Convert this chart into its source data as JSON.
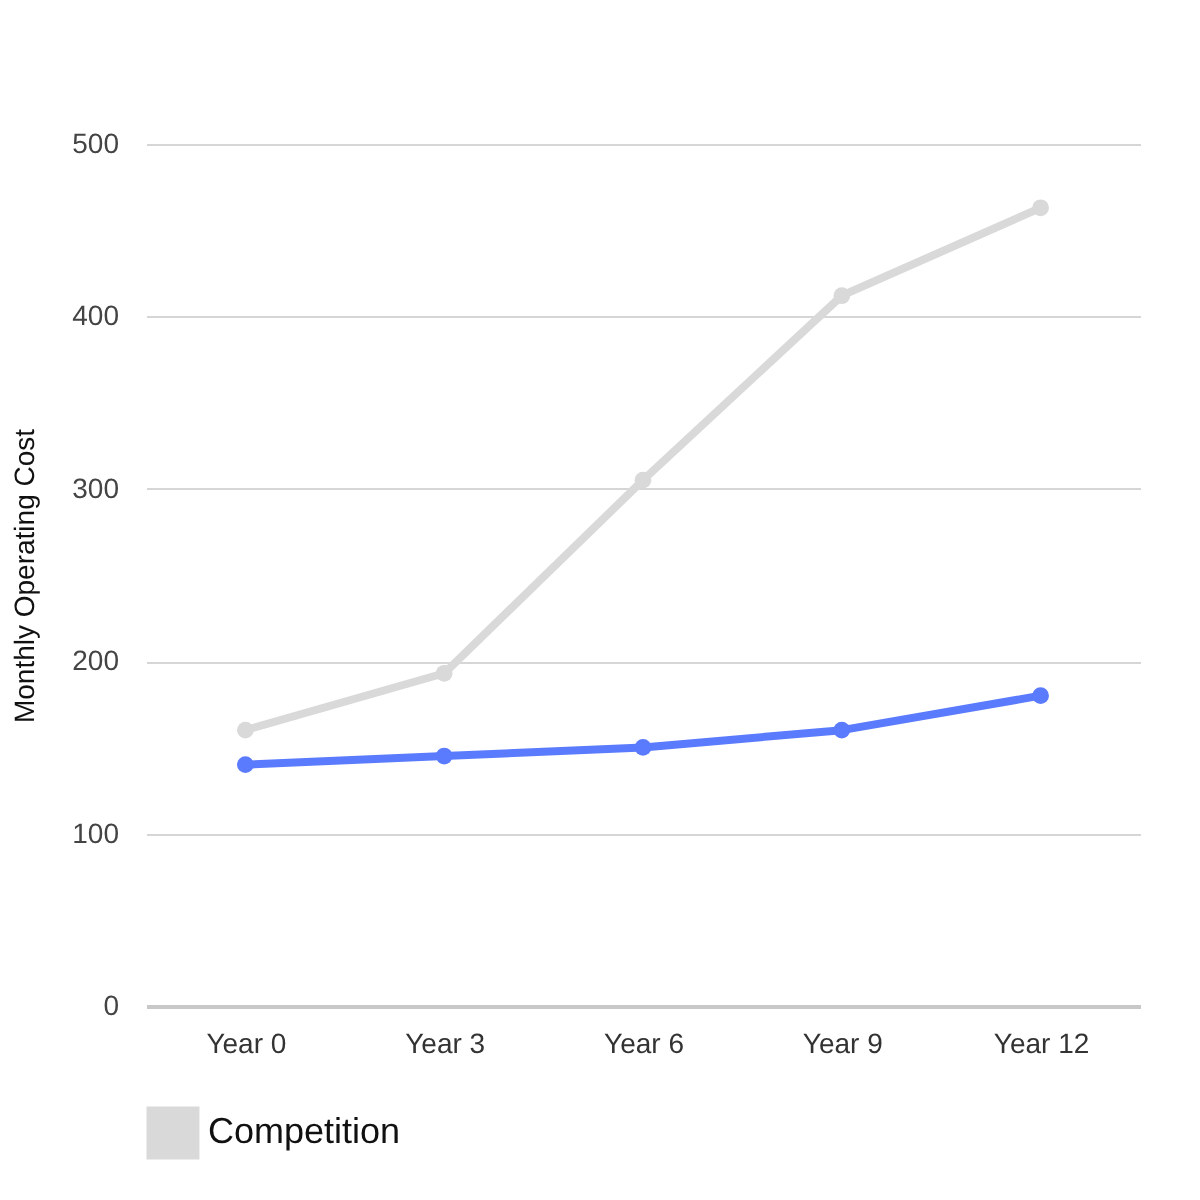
{
  "chart_data": {
    "type": "line",
    "ylabel": "Monthly Operating Cost",
    "categories": [
      "Year 0",
      "Year 3",
      "Year 6",
      "Year 9",
      "Year 12"
    ],
    "series": [
      {
        "color": "#5b7bfe",
        "values": [
          140,
          145,
          150,
          160,
          180
        ]
      },
      {
        "name": "Competition",
        "color": "#d9d9d9",
        "values": [
          160,
          193,
          305,
          412,
          463
        ]
      }
    ],
    "ylim": [
      0,
      500
    ],
    "yticks": [
      0,
      100,
      200,
      300,
      400,
      500
    ],
    "grid": "y",
    "legend": "bottom",
    "marker": "circle",
    "line_style": "solid"
  }
}
